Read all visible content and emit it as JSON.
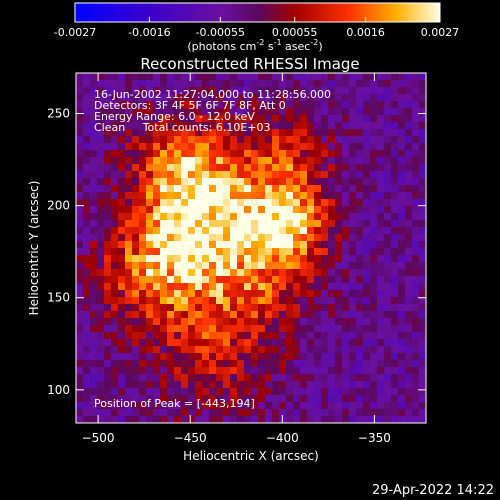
{
  "colorbar": {
    "tick_labels": [
      "-0.0027",
      "-0.0016",
      "-0.00055",
      "0.00055",
      "0.0016",
      "0.0027"
    ],
    "ticks": [
      -0.0027,
      -0.0016,
      -0.00055,
      0.00055,
      0.0016,
      0.0027
    ],
    "range": [
      -0.0027,
      0.0027
    ],
    "units_main": "(photons cm",
    "units_sup1": "-2",
    "units_mid": " s",
    "units_sup2": "-1",
    "units_end": " asec",
    "units_sup3": "-2",
    "units_close": ")"
  },
  "chart_data": {
    "type": "heatmap",
    "title": "Reconstructed RHESSI Image",
    "xlabel": "Heliocentric X (arcsec)",
    "ylabel": "Heliocentric Y (arcsec)",
    "xlim": [
      -512,
      -322
    ],
    "ylim": [
      82,
      272
    ],
    "x_ticks": [
      -500,
      -450,
      -400,
      -350
    ],
    "y_ticks": [
      100,
      150,
      200,
      250
    ],
    "annotations": [
      "16-Jun-2002 11:27:04.000 to 11:28:56.000",
      "Detectors: 3F 4F 5F 6F 7F 8F, Att 0",
      "Energy Range: 6.0 - 12.0 keV",
      "Clean     Total counts: 6.10E+03"
    ],
    "peak_label": "Position of Peak = [-443,194]",
    "peak": [
      -443,
      194
    ],
    "sources": [
      {
        "x": -443,
        "y": 194,
        "amp": 1.0,
        "sigma": 18
      },
      {
        "x": -398,
        "y": 190,
        "amp": 0.8,
        "sigma": 16
      },
      {
        "x": -470,
        "y": 165,
        "amp": 0.6,
        "sigma": 22
      },
      {
        "x": -420,
        "y": 158,
        "amp": 0.5,
        "sigma": 24
      },
      {
        "x": -455,
        "y": 225,
        "amp": 0.55,
        "sigma": 20
      },
      {
        "x": -400,
        "y": 225,
        "amp": 0.45,
        "sigma": 18
      },
      {
        "x": -440,
        "y": 115,
        "amp": 0.3,
        "sigma": 22
      }
    ]
  },
  "timestamp": "29-Apr-2022 14:22"
}
